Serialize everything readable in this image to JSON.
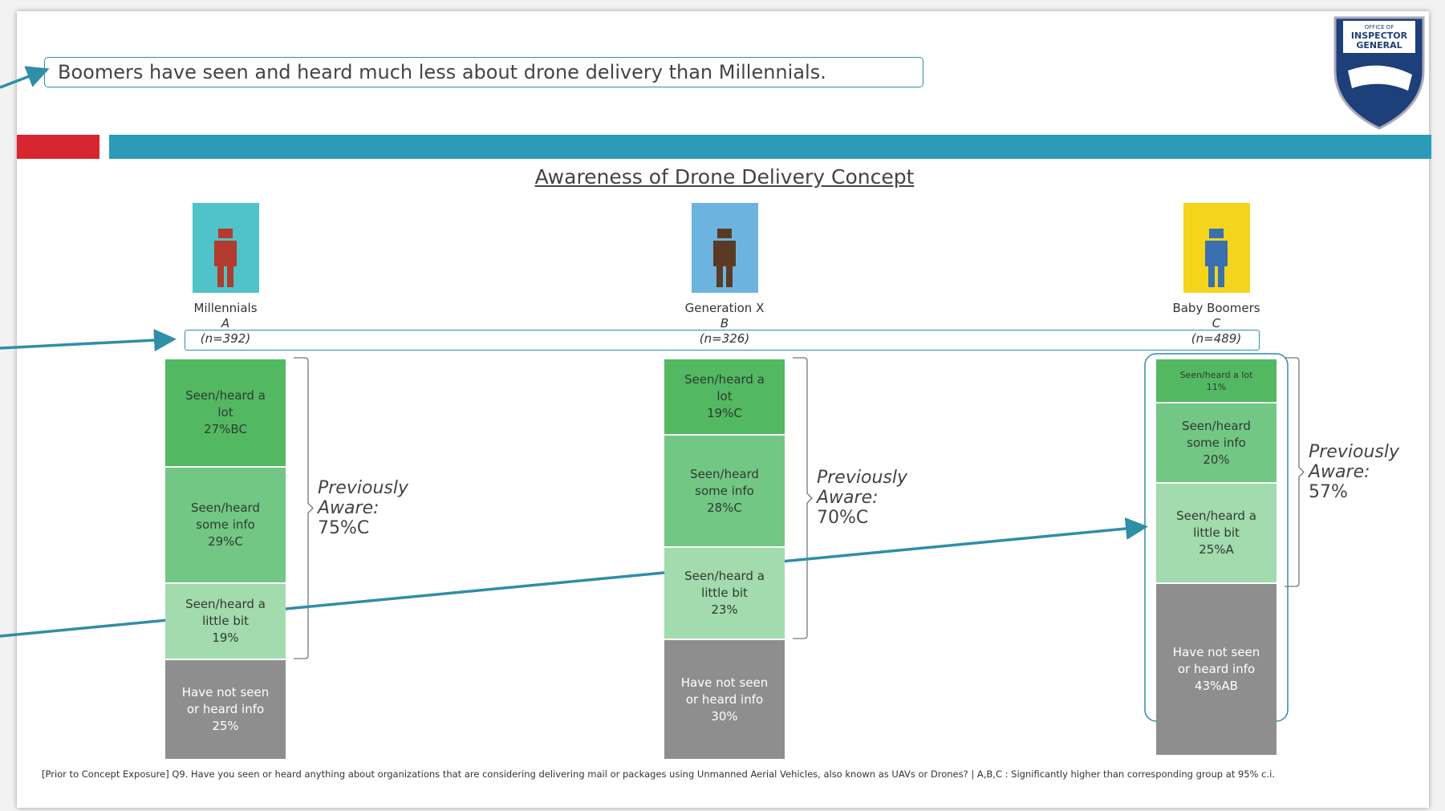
{
  "chart_data": {
    "type": "stacked_bar",
    "headline": "Boomers have seen and heard much less about drone delivery than Millennials.",
    "title": "Awareness of Drone Delivery Concept",
    "logo_text": [
      "OFFICE OF",
      "INSPECTOR",
      "GENERAL"
    ],
    "categories": [
      "Millennials",
      "Generation X",
      "Baby Boomers"
    ],
    "group_letters": [
      "A",
      "B",
      "C"
    ],
    "sample_sizes": [
      "(n=392)",
      "(n=326)",
      "(n=489)"
    ],
    "series": [
      {
        "name": "Seen/heard a lot",
        "color": "#52b862",
        "text_color": "#2f3a2f",
        "values": [
          27,
          19,
          11
        ],
        "value_labels": [
          "27%BC",
          "19%C",
          "11%"
        ]
      },
      {
        "name": "Seen/heard some info",
        "color": "#72c784",
        "text_color": "#2f3a2f",
        "values": [
          29,
          28,
          20
        ],
        "value_labels": [
          "29%C",
          "28%C",
          "20%"
        ]
      },
      {
        "name": "Seen/heard a little bit",
        "color": "#a2dbad",
        "text_color": "#2f3a2f",
        "values": [
          19,
          23,
          25
        ],
        "value_labels": [
          "19%",
          "23%",
          "25%A"
        ]
      },
      {
        "name": "Have not seen or heard info",
        "color": "#8e8e8e",
        "text_color": "#ffffff",
        "values": [
          25,
          30,
          43
        ],
        "value_labels": [
          "25%",
          "30%",
          "43%AB"
        ]
      }
    ],
    "aware_label": "Previously Aware:",
    "aware_values": [
      75,
      70,
      57
    ],
    "aware_labels": [
      "75%C",
      "70%C",
      "57%"
    ],
    "footnote": "[Prior to Concept Exposure] Q9. Have you seen or heard anything about organizations that are considering delivering mail or packages using Unmanned Aerial Vehicles, also known as UAVs or Drones? | A,B,C : Significantly higher than corresponding group at 95% c.i."
  }
}
